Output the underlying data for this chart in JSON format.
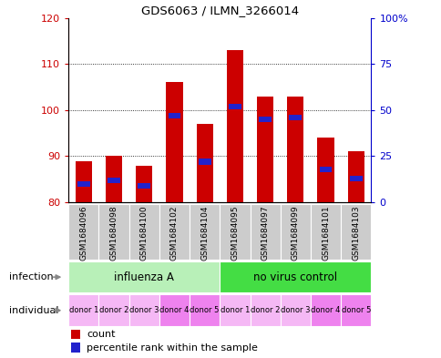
{
  "title": "GDS6063 / ILMN_3266014",
  "samples": [
    "GSM1684096",
    "GSM1684098",
    "GSM1684100",
    "GSM1684102",
    "GSM1684104",
    "GSM1684095",
    "GSM1684097",
    "GSM1684099",
    "GSM1684101",
    "GSM1684103"
  ],
  "bar_values": [
    89,
    90,
    88,
    106,
    97,
    113,
    103,
    103,
    94,
    91
  ],
  "percentile_values": [
    10,
    12,
    9,
    47,
    22,
    52,
    45,
    46,
    18,
    13
  ],
  "ymin": 80,
  "ymax": 120,
  "yticks": [
    80,
    90,
    100,
    110,
    120
  ],
  "y2ticks": [
    0,
    25,
    50,
    75,
    100
  ],
  "y2labels": [
    "0",
    "25",
    "50",
    "75",
    "100%"
  ],
  "bar_color": "#cc0000",
  "percentile_color": "#2222cc",
  "grid_color": "#000000",
  "axis_color_left": "#cc0000",
  "axis_color_right": "#0000cc",
  "infection_groups": [
    {
      "label": "influenza A",
      "start": 0,
      "end": 5,
      "color": "#b8f0b8"
    },
    {
      "label": "no virus control",
      "start": 5,
      "end": 10,
      "color": "#44dd44"
    }
  ],
  "individual_labels": [
    "donor 1",
    "donor 2",
    "donor 3",
    "donor 4",
    "donor 5",
    "donor 1",
    "donor 2",
    "donor 3",
    "donor 4",
    "donor 5"
  ],
  "individual_colors": [
    "#f5b8f5",
    "#f5b8f5",
    "#f5b8f5",
    "#ee82ee",
    "#ee82ee",
    "#f5b8f5",
    "#f5b8f5",
    "#f5b8f5",
    "#ee82ee",
    "#ee82ee"
  ],
  "row_label_infection": "infection",
  "row_label_individual": "individual",
  "legend_count": "count",
  "legend_percentile": "percentile rank within the sample",
  "bar_width": 0.55,
  "sample_bg": "#cccccc"
}
